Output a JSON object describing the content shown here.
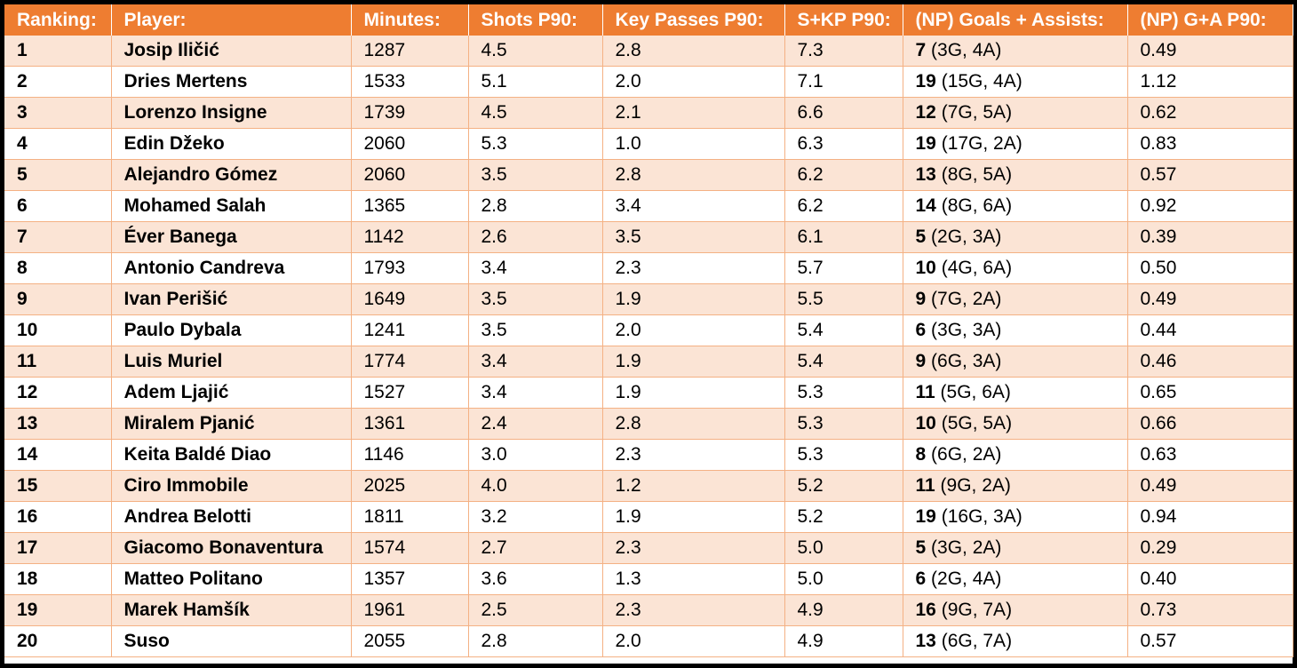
{
  "colors": {
    "header_bg": "#ee7d31",
    "header_text": "#ffffff",
    "row_odd": "#fbe4d5",
    "row_even": "#ffffff",
    "border": "#f4b184"
  },
  "chart_data": {
    "type": "table",
    "columns": [
      "Ranking:",
      "Player:",
      "Minutes:",
      "Shots P90:",
      "Key Passes P90:",
      "S+KP P90:",
      "(NP) Goals + Assists:",
      "(NP) G+A P90:"
    ],
    "rows": [
      {
        "rank": "1",
        "player": "Josip Iličić",
        "minutes": "1287",
        "shots": "4.5",
        "key_passes": "2.8",
        "skp": "7.3",
        "ga_total": "7",
        "ga_detail": "(3G, 4A)",
        "ga_p90": "0.49"
      },
      {
        "rank": "2",
        "player": "Dries Mertens",
        "minutes": "1533",
        "shots": "5.1",
        "key_passes": "2.0",
        "skp": "7.1",
        "ga_total": "19",
        "ga_detail": "(15G, 4A)",
        "ga_p90": "1.12"
      },
      {
        "rank": "3",
        "player": "Lorenzo Insigne",
        "minutes": "1739",
        "shots": "4.5",
        "key_passes": "2.1",
        "skp": "6.6",
        "ga_total": "12",
        "ga_detail": "(7G, 5A)",
        "ga_p90": "0.62"
      },
      {
        "rank": "4",
        "player": "Edin Džeko",
        "minutes": "2060",
        "shots": "5.3",
        "key_passes": "1.0",
        "skp": "6.3",
        "ga_total": "19",
        "ga_detail": "(17G, 2A)",
        "ga_p90": "0.83"
      },
      {
        "rank": "5",
        "player": "Alejandro Gómez",
        "minutes": "2060",
        "shots": "3.5",
        "key_passes": "2.8",
        "skp": "6.2",
        "ga_total": "13",
        "ga_detail": "(8G, 5A)",
        "ga_p90": "0.57"
      },
      {
        "rank": "6",
        "player": "Mohamed Salah",
        "minutes": "1365",
        "shots": "2.8",
        "key_passes": "3.4",
        "skp": "6.2",
        "ga_total": "14",
        "ga_detail": "(8G, 6A)",
        "ga_p90": "0.92"
      },
      {
        "rank": "7",
        "player": "Éver Banega",
        "minutes": "1142",
        "shots": "2.6",
        "key_passes": "3.5",
        "skp": "6.1",
        "ga_total": "5",
        "ga_detail": "(2G, 3A)",
        "ga_p90": "0.39"
      },
      {
        "rank": "8",
        "player": "Antonio Candreva",
        "minutes": "1793",
        "shots": "3.4",
        "key_passes": "2.3",
        "skp": "5.7",
        "ga_total": "10",
        "ga_detail": "(4G, 6A)",
        "ga_p90": "0.50"
      },
      {
        "rank": "9",
        "player": "Ivan Perišić",
        "minutes": "1649",
        "shots": "3.5",
        "key_passes": "1.9",
        "skp": "5.5",
        "ga_total": "9",
        "ga_detail": "(7G, 2A)",
        "ga_p90": "0.49"
      },
      {
        "rank": "10",
        "player": "Paulo Dybala",
        "minutes": "1241",
        "shots": "3.5",
        "key_passes": "2.0",
        "skp": "5.4",
        "ga_total": "6",
        "ga_detail": "(3G, 3A)",
        "ga_p90": "0.44"
      },
      {
        "rank": "11",
        "player": "Luis Muriel",
        "minutes": "1774",
        "shots": "3.4",
        "key_passes": "1.9",
        "skp": "5.4",
        "ga_total": "9",
        "ga_detail": "(6G, 3A)",
        "ga_p90": "0.46"
      },
      {
        "rank": "12",
        "player": "Adem Ljajić",
        "minutes": "1527",
        "shots": "3.4",
        "key_passes": "1.9",
        "skp": "5.3",
        "ga_total": "11",
        "ga_detail": "(5G, 6A)",
        "ga_p90": "0.65"
      },
      {
        "rank": "13",
        "player": "Miralem Pjanić",
        "minutes": "1361",
        "shots": "2.4",
        "key_passes": "2.8",
        "skp": "5.3",
        "ga_total": "10",
        "ga_detail": "(5G, 5A)",
        "ga_p90": "0.66"
      },
      {
        "rank": "14",
        "player": "Keita Baldé Diao",
        "minutes": "1146",
        "shots": "3.0",
        "key_passes": "2.3",
        "skp": "5.3",
        "ga_total": "8",
        "ga_detail": "(6G, 2A)",
        "ga_p90": "0.63"
      },
      {
        "rank": "15",
        "player": "Ciro Immobile",
        "minutes": "2025",
        "shots": "4.0",
        "key_passes": "1.2",
        "skp": "5.2",
        "ga_total": "11",
        "ga_detail": "(9G, 2A)",
        "ga_p90": "0.49"
      },
      {
        "rank": "16",
        "player": "Andrea Belotti",
        "minutes": "1811",
        "shots": "3.2",
        "key_passes": "1.9",
        "skp": "5.2",
        "ga_total": "19",
        "ga_detail": "(16G, 3A)",
        "ga_p90": "0.94"
      },
      {
        "rank": "17",
        "player": "Giacomo Bonaventura",
        "minutes": "1574",
        "shots": "2.7",
        "key_passes": "2.3",
        "skp": "5.0",
        "ga_total": "5",
        "ga_detail": "(3G, 2A)",
        "ga_p90": "0.29"
      },
      {
        "rank": "18",
        "player": "Matteo Politano",
        "minutes": "1357",
        "shots": "3.6",
        "key_passes": "1.3",
        "skp": "5.0",
        "ga_total": "6",
        "ga_detail": "(2G, 4A)",
        "ga_p90": "0.40"
      },
      {
        "rank": "19",
        "player": "Marek Hamšík",
        "minutes": "1961",
        "shots": "2.5",
        "key_passes": "2.3",
        "skp": "4.9",
        "ga_total": "16",
        "ga_detail": "(9G, 7A)",
        "ga_p90": "0.73"
      },
      {
        "rank": "20",
        "player": "Suso",
        "minutes": "2055",
        "shots": "2.8",
        "key_passes": "2.0",
        "skp": "4.9",
        "ga_total": "13",
        "ga_detail": "(6G, 7A)",
        "ga_p90": "0.57"
      }
    ]
  }
}
